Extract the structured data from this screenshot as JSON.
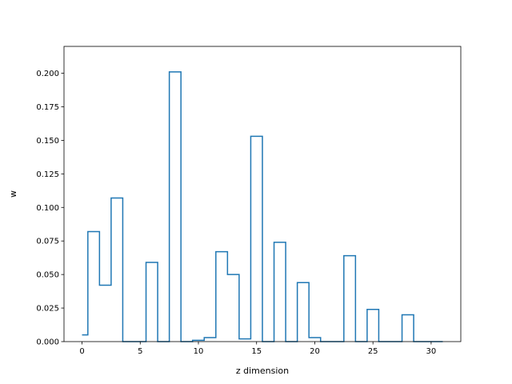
{
  "chart_data": {
    "type": "line",
    "drawstyle": "steps-mid",
    "title": "",
    "xlabel": "z dimension",
    "ylabel": "w",
    "xlim": [
      -1.55,
      32.55
    ],
    "ylim": [
      0.0,
      0.22
    ],
    "xticks": [
      0,
      5,
      10,
      15,
      20,
      25,
      30
    ],
    "yticks": [
      0.0,
      0.025,
      0.05,
      0.075,
      0.1,
      0.125,
      0.15,
      0.175,
      0.2
    ],
    "grid": false,
    "line_color": "#1f77b4",
    "series": [
      {
        "x": [
          0,
          1,
          2,
          3,
          4,
          5,
          6,
          7,
          8,
          9,
          10,
          11,
          12,
          13,
          14,
          15,
          16,
          17,
          18,
          19,
          20,
          21,
          22,
          23,
          24,
          25,
          26,
          27,
          28,
          29,
          30,
          31
        ],
        "values": [
          0.005,
          0.082,
          0.042,
          0.107,
          0.0,
          0.0,
          0.059,
          0.0,
          0.201,
          0.0,
          0.001,
          0.003,
          0.067,
          0.05,
          0.002,
          0.153,
          0.0,
          0.074,
          0.0,
          0.044,
          0.003,
          0.0,
          0.0,
          0.064,
          0.0,
          0.024,
          0.0,
          0.0,
          0.02,
          0.0,
          0.0,
          0.0
        ]
      }
    ]
  }
}
